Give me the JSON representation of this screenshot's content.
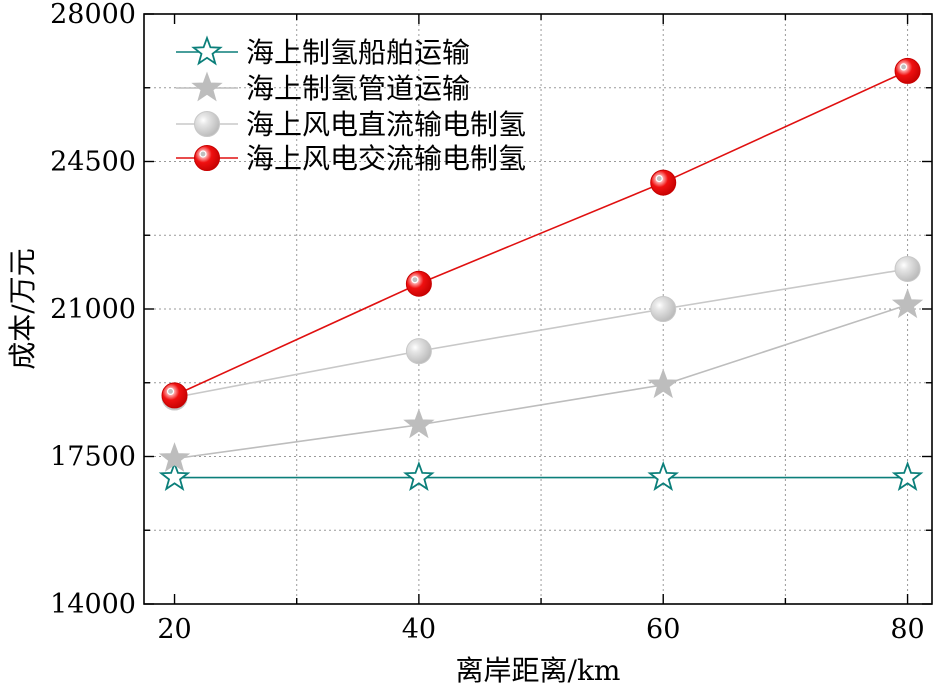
{
  "chart_data": {
    "type": "line",
    "title": "",
    "xlabel": "离岸距离/km",
    "ylabel": "成本/万元",
    "x": [
      20,
      40,
      60,
      80
    ],
    "xlim": [
      17.5,
      82
    ],
    "ylim": [
      14000,
      28000
    ],
    "x_ticks": [
      "20",
      "40",
      "60",
      "80"
    ],
    "y_ticks": [
      "14000",
      "17500",
      "21000",
      "24500",
      "28000"
    ],
    "x_tick_values": [
      20,
      40,
      60,
      80
    ],
    "y_tick_values": [
      14000,
      17500,
      21000,
      24500,
      28000
    ],
    "x_minor_grid": [
      30,
      50,
      70
    ],
    "y_minor_grid": [
      15750,
      19250,
      22750,
      26250
    ],
    "grid": true,
    "legend_position": "top-left",
    "series": [
      {
        "name": "海上制氢船舶运输",
        "values": [
          17000,
          17000,
          17000,
          17000
        ],
        "color": "#0b7f7a",
        "marker": "star-open"
      },
      {
        "name": "海上制氢管道运输",
        "values": [
          17450,
          18250,
          19200,
          21100
        ],
        "color": "#bdbdbd",
        "marker": "star"
      },
      {
        "name": "海上风电直流输电制氢",
        "values": [
          18900,
          20000,
          21000,
          21950
        ],
        "color": "#c8c8c8",
        "marker": "sphere-gray"
      },
      {
        "name": "海上风电交流输电制氢",
        "values": [
          18950,
          21600,
          24000,
          26650
        ],
        "color": "#e01010",
        "marker": "sphere-red"
      }
    ]
  }
}
